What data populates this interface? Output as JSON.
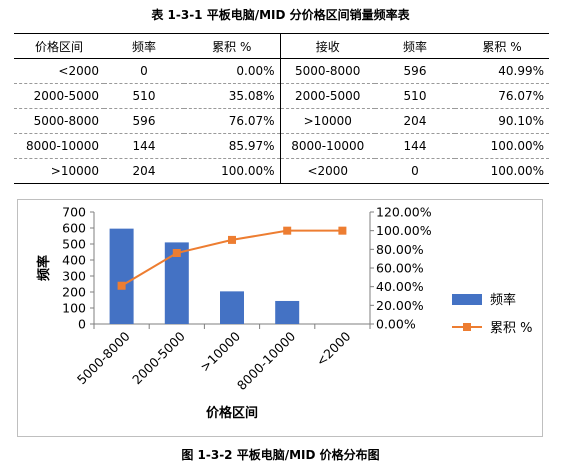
{
  "table_title": "表 1-3-1 平板电脑/MID 分价格区间销量频率表",
  "table": {
    "headers": [
      "价格区间",
      "频率",
      "累积 %",
      "接收",
      "频率",
      "累积 %"
    ],
    "rows": [
      [
        "<2000",
        "0",
        "0.00%",
        "5000-8000",
        "596",
        "40.99%"
      ],
      [
        "2000-5000",
        "510",
        "35.08%",
        "2000-5000",
        "510",
        "76.07%"
      ],
      [
        "5000-8000",
        "596",
        "76.07%",
        ">10000",
        "204",
        "90.10%"
      ],
      [
        "8000-10000",
        "144",
        "85.97%",
        "8000-10000",
        "144",
        "100.00%"
      ],
      [
        ">10000",
        "204",
        "100.00%",
        "<2000",
        "0",
        "100.00%"
      ]
    ]
  },
  "chart_data": {
    "type": "bar",
    "categories": [
      "5000-8000",
      "2000-5000",
      ">10000",
      "8000-10000",
      "<2000"
    ],
    "series": [
      {
        "name": "频率",
        "type": "bar",
        "axis": "left",
        "values": [
          596,
          510,
          204,
          144,
          0
        ],
        "color": "#4472C4"
      },
      {
        "name": "累积 %",
        "type": "line",
        "axis": "right",
        "values": [
          40.99,
          76.07,
          90.1,
          100.0,
          100.0
        ],
        "color": "#ED7D31"
      }
    ],
    "xlabel": "价格区间",
    "ylabel": "频率",
    "ylim": [
      0,
      700
    ],
    "y_ticks": [
      "0",
      "100",
      "200",
      "300",
      "400",
      "500",
      "600",
      "700"
    ],
    "y2lim": [
      0,
      120
    ],
    "y2_ticks": [
      "0.00%",
      "20.00%",
      "40.00%",
      "60.00%",
      "80.00%",
      "100.00%",
      "120.00%"
    ],
    "grid": false,
    "legend": "right"
  },
  "caption": "图 1-3-2 平板电脑/MID 价格分布图"
}
